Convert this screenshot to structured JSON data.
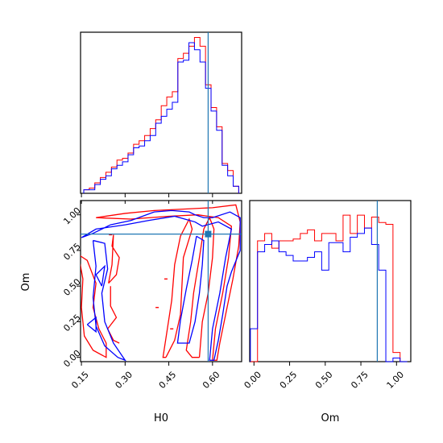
{
  "chart_data": {
    "type": "corner",
    "parameters": [
      "H0",
      "Om"
    ],
    "truths": {
      "H0": 0.585,
      "Om": 0.865
    },
    "colors": {
      "series_a": "#ff0000",
      "series_b": "#0000ff",
      "truth": "#1f77b4"
    },
    "ranges": {
      "H0": [
        0.147,
        0.7
      ],
      "Om": [
        -0.03,
        1.1
      ]
    },
    "h0_histogram": {
      "bin_edges": [
        0.158,
        0.177,
        0.196,
        0.215,
        0.234,
        0.253,
        0.272,
        0.291,
        0.31,
        0.329,
        0.348,
        0.367,
        0.386,
        0.405,
        0.424,
        0.443,
        0.462,
        0.481,
        0.5,
        0.519,
        0.538,
        0.557,
        0.576,
        0.595,
        0.614,
        0.633,
        0.652,
        0.671,
        0.69
      ],
      "series": [
        {
          "color": "red",
          "values": [
            0.02,
            0.03,
            0.06,
            0.09,
            0.12,
            0.15,
            0.19,
            0.2,
            0.23,
            0.28,
            0.3,
            0.33,
            0.37,
            0.42,
            0.5,
            0.55,
            0.58,
            0.77,
            0.8,
            0.84,
            0.89,
            0.84,
            0.62,
            0.49,
            0.38,
            0.17,
            0.13,
            0.04
          ]
        },
        {
          "color": "blue",
          "values": [
            0.02,
            0.02,
            0.05,
            0.08,
            0.1,
            0.14,
            0.16,
            0.18,
            0.22,
            0.26,
            0.27,
            0.3,
            0.33,
            0.4,
            0.44,
            0.48,
            0.52,
            0.75,
            0.76,
            0.86,
            0.82,
            0.75,
            0.6,
            0.47,
            0.36,
            0.16,
            0.1,
            0.04
          ]
        }
      ]
    },
    "om_histogram": {
      "bin_edges": [
        -0.025,
        0.025,
        0.075,
        0.125,
        0.175,
        0.225,
        0.275,
        0.325,
        0.375,
        0.425,
        0.475,
        0.525,
        0.575,
        0.625,
        0.675,
        0.725,
        0.775,
        0.825,
        0.875,
        0.925,
        0.975,
        1.025,
        1.075
      ],
      "series": [
        {
          "color": "red",
          "values": [
            0.0,
            0.66,
            0.7,
            0.62,
            0.66,
            0.66,
            0.67,
            0.7,
            0.72,
            0.66,
            0.7,
            0.7,
            0.66,
            0.8,
            0.7,
            0.8,
            0.73,
            0.79,
            0.76,
            0.75,
            0.05,
            0.0
          ]
        },
        {
          "color": "blue",
          "values": [
            0.18,
            0.6,
            0.64,
            0.66,
            0.6,
            0.58,
            0.55,
            0.55,
            0.57,
            0.6,
            0.5,
            0.65,
            0.65,
            0.6,
            0.68,
            0.7,
            0.73,
            0.64,
            0.5,
            0.0,
            0.02,
            0.0
          ]
        }
      ]
    },
    "contours": [
      {
        "color": "red",
        "levels": [
          [
            [
              0.2,
              0.98
            ],
            [
              0.3,
              1.01
            ],
            [
              0.4,
              1.03
            ],
            [
              0.5,
              1.04
            ],
            [
              0.6,
              1.05
            ],
            [
              0.68,
              1.07
            ],
            [
              0.695,
              0.95
            ],
            [
              0.69,
              0.78
            ],
            [
              0.67,
              0.55
            ],
            [
              0.645,
              0.3
            ],
            [
              0.625,
              0.1
            ],
            [
              0.615,
              -0.02
            ],
            [
              0.6,
              -0.02
            ],
            [
              0.61,
              0.2
            ],
            [
              0.635,
              0.45
            ],
            [
              0.655,
              0.7
            ],
            [
              0.665,
              0.92
            ],
            [
              0.62,
              0.98
            ],
            [
              0.55,
              1.0
            ],
            [
              0.45,
              0.99
            ],
            [
              0.32,
              0.97
            ],
            [
              0.2,
              0.98
            ]
          ],
          [
            [
              0.14,
              0.72
            ],
            [
              0.155,
              0.55
            ],
            [
              0.15,
              0.35
            ],
            [
              0.16,
              0.15
            ],
            [
              0.19,
              0.05
            ],
            [
              0.235,
              0.0
            ],
            [
              0.235,
              0.1
            ],
            [
              0.21,
              0.2
            ],
            [
              0.19,
              0.35
            ],
            [
              0.2,
              0.52
            ],
            [
              0.17,
              0.68
            ],
            [
              0.14,
              0.72
            ]
          ],
          [
            [
              0.555,
              0.0
            ],
            [
              0.565,
              0.25
            ],
            [
              0.585,
              0.45
            ],
            [
              0.6,
              0.7
            ],
            [
              0.605,
              0.9
            ],
            [
              0.59,
              0.98
            ],
            [
              0.57,
              0.9
            ],
            [
              0.555,
              0.7
            ],
            [
              0.535,
              0.45
            ],
            [
              0.525,
              0.25
            ],
            [
              0.51,
              0.05
            ],
            [
              0.53,
              0.0
            ],
            [
              0.555,
              0.0
            ]
          ],
          [
            [
              0.44,
              0.0
            ],
            [
              0.47,
              0.12
            ],
            [
              0.49,
              0.3
            ],
            [
              0.495,
              0.5
            ],
            [
              0.5,
              0.7
            ],
            [
              0.53,
              0.9
            ],
            [
              0.52,
              0.97
            ],
            [
              0.49,
              0.85
            ],
            [
              0.47,
              0.65
            ],
            [
              0.46,
              0.4
            ],
            [
              0.445,
              0.2
            ],
            [
              0.43,
              0.0
            ],
            [
              0.44,
              0.0
            ]
          ],
          [
            [
              0.243,
              0.52
            ],
            [
              0.27,
              0.58
            ],
            [
              0.28,
              0.7
            ],
            [
              0.255,
              0.78
            ],
            [
              0.26,
              0.86
            ],
            [
              0.255,
              0.65
            ],
            [
              0.243,
              0.52
            ]
          ],
          [
            [
              0.25,
              0.5
            ],
            [
              0.25,
              0.36
            ],
            [
              0.27,
              0.28
            ],
            [
              0.24,
              0.2
            ],
            [
              0.26,
              0.12
            ],
            [
              0.28,
              0.1
            ]
          ]
        ]
      },
      {
        "color": "blue",
        "levels": [
          [
            [
              0.15,
              0.84
            ],
            [
              0.19,
              0.87
            ],
            [
              0.25,
              0.93
            ],
            [
              0.32,
              0.96
            ],
            [
              0.4,
              1.02
            ],
            [
              0.46,
              1.03
            ],
            [
              0.52,
              1.02
            ],
            [
              0.54,
              1.0
            ],
            [
              0.57,
              0.98
            ],
            [
              0.6,
              0.98
            ],
            [
              0.66,
              1.02
            ],
            [
              0.695,
              0.98
            ],
            [
              0.695,
              0.75
            ],
            [
              0.665,
              0.6
            ],
            [
              0.65,
              0.5
            ],
            [
              0.635,
              0.3
            ],
            [
              0.62,
              0.12
            ],
            [
              0.605,
              -0.02
            ],
            [
              0.59,
              -0.02
            ],
            [
              0.6,
              0.2
            ],
            [
              0.625,
              0.45
            ],
            [
              0.645,
              0.7
            ],
            [
              0.665,
              0.9
            ],
            [
              0.62,
              0.95
            ],
            [
              0.565,
              0.92
            ],
            [
              0.54,
              0.95
            ],
            [
              0.47,
              0.99
            ],
            [
              0.38,
              0.96
            ],
            [
              0.3,
              0.93
            ],
            [
              0.2,
              0.9
            ],
            [
              0.15,
              0.84
            ]
          ],
          [
            [
              0.19,
              0.82
            ],
            [
              0.2,
              0.64
            ],
            [
              0.19,
              0.42
            ],
            [
              0.2,
              0.22
            ],
            [
              0.23,
              0.08
            ],
            [
              0.275,
              0.0
            ],
            [
              0.3,
              -0.02
            ],
            [
              0.26,
              0.1
            ],
            [
              0.23,
              0.25
            ],
            [
              0.22,
              0.45
            ],
            [
              0.24,
              0.62
            ],
            [
              0.23,
              0.8
            ],
            [
              0.19,
              0.82
            ]
          ],
          [
            [
              0.545,
              0.85
            ],
            [
              0.53,
              0.68
            ],
            [
              0.51,
              0.48
            ],
            [
              0.49,
              0.26
            ],
            [
              0.48,
              0.1
            ],
            [
              0.52,
              0.1
            ],
            [
              0.54,
              0.25
            ],
            [
              0.555,
              0.45
            ],
            [
              0.565,
              0.65
            ],
            [
              0.57,
              0.82
            ],
            [
              0.545,
              0.85
            ]
          ],
          [
            [
              0.17,
              0.23
            ],
            [
              0.2,
              0.18
            ],
            [
              0.2,
              0.28
            ],
            [
              0.17,
              0.23
            ]
          ],
          [
            [
              0.22,
              0.5
            ],
            [
              0.2,
              0.58
            ],
            [
              0.23,
              0.64
            ],
            [
              0.22,
              0.5
            ]
          ]
        ]
      }
    ]
  },
  "labels": {
    "h0_ticks": [
      "0.15",
      "0.30",
      "0.45",
      "0.60"
    ],
    "om_ticks": [
      "0.00",
      "0.25",
      "0.50",
      "0.75",
      "1.00"
    ],
    "h0_axis": "H0",
    "om_axis": "Om"
  }
}
